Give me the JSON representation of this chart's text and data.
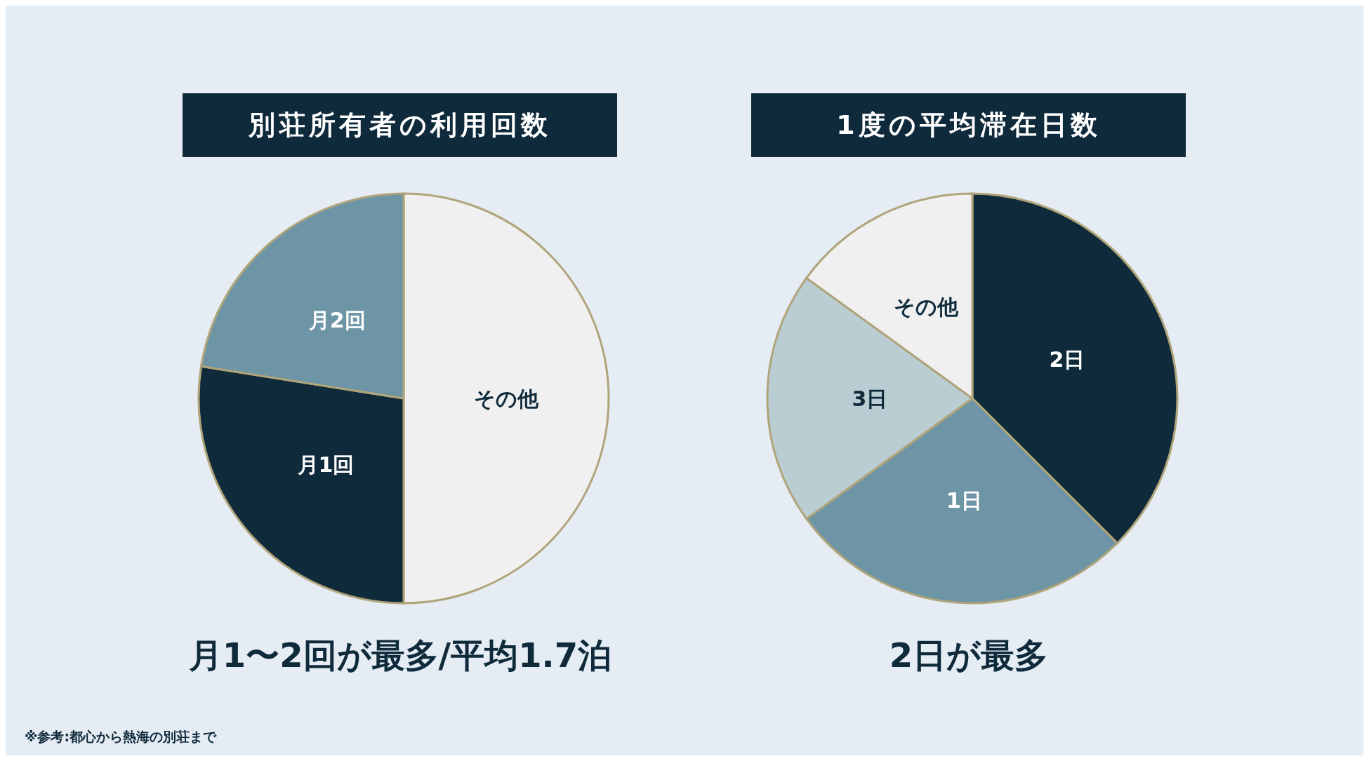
{
  "chart_data": [
    {
      "type": "pie",
      "title": "別荘所有者の利用回数",
      "subtitle": "月1〜2回が最多/平均1.7泊",
      "categories": [
        "その他",
        "月1回",
        "月2回"
      ],
      "values": [
        50,
        27.5,
        22.5
      ],
      "colors": [
        "#f0f0f0",
        "#0f2a3b",
        "#6e95a6"
      ],
      "annotations": [
        "※参考:都心から熱海の別荘まで"
      ]
    },
    {
      "type": "pie",
      "title": "1度の平均滞在日数",
      "subtitle": "2日が最多",
      "categories": [
        "2日",
        "1日",
        "3日",
        "その他"
      ],
      "values": [
        37.5,
        27.5,
        20,
        15
      ],
      "colors": [
        "#0f2a3b",
        "#6e95a6",
        "#b9cdd3",
        "#f0f0f0"
      ]
    }
  ]
}
